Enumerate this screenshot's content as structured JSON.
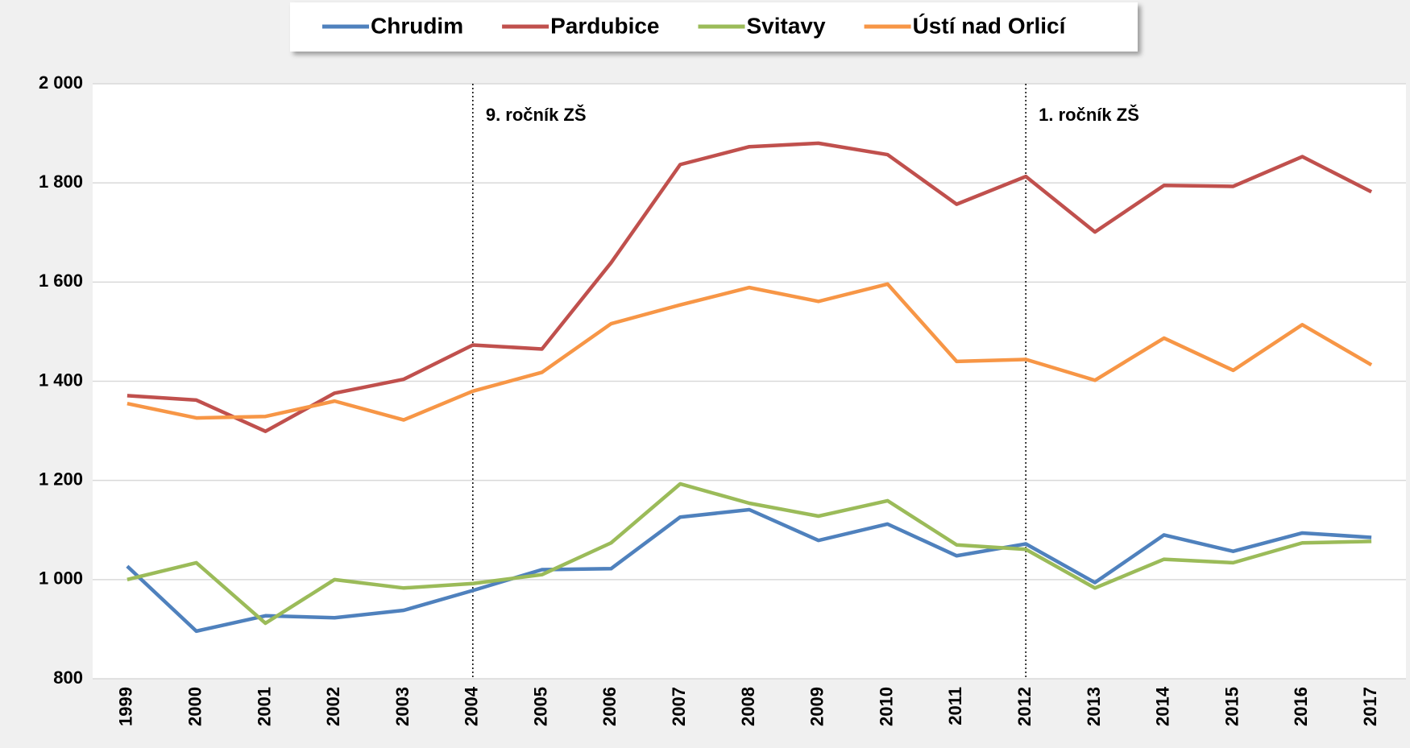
{
  "chart_data": {
    "type": "line",
    "categories": [
      "1999",
      "2000",
      "2001",
      "2002",
      "2003",
      "2004",
      "2005",
      "2006",
      "2007",
      "2008",
      "2009",
      "2010",
      "2011",
      "2012",
      "2013",
      "2014",
      "2015",
      "2016",
      "2017"
    ],
    "series": [
      {
        "name": "Chrudim",
        "color": "#4f81bd",
        "values": [
          1027,
          896,
          927,
          923,
          938,
          978,
          1020,
          1022,
          1126,
          1141,
          1079,
          1112,
          1048,
          1072,
          994,
          1090,
          1057,
          1094,
          1085
        ]
      },
      {
        "name": "Pardubice",
        "color": "#c0504d",
        "values": [
          1371,
          1362,
          1299,
          1376,
          1404,
          1473,
          1465,
          1639,
          1837,
          1873,
          1880,
          1857,
          1757,
          1813,
          1701,
          1795,
          1793,
          1853,
          1782
        ]
      },
      {
        "name": "Svitavy",
        "color": "#9bbb59",
        "values": [
          1000,
          1034,
          912,
          1000,
          983,
          992,
          1010,
          1074,
          1193,
          1154,
          1128,
          1159,
          1070,
          1061,
          983,
          1041,
          1034,
          1074,
          1077
        ]
      },
      {
        "name": "Ústí nad Orlicí",
        "color": "#f79646",
        "values": [
          1355,
          1326,
          1329,
          1360,
          1322,
          1380,
          1418,
          1516,
          1554,
          1589,
          1561,
          1596,
          1440,
          1444,
          1402,
          1487,
          1422,
          1514,
          1433
        ]
      }
    ],
    "ylim": [
      800,
      2000
    ],
    "yticks": [
      800,
      {
        "value": 1000,
        "label": "1 000"
      },
      {
        "value": 1200,
        "label": "1 200"
      },
      {
        "value": 1400,
        "label": "1 400"
      },
      {
        "value": 1600,
        "label": "1 600"
      },
      {
        "value": 1800,
        "label": "1 800"
      },
      {
        "value": 2000,
        "label": "2 000"
      }
    ],
    "grid": true,
    "legend": "top",
    "annotations": [
      {
        "text": "9. ročník ZŠ",
        "x": "2004"
      },
      {
        "text": "1. ročník ZŠ",
        "x": "2012"
      }
    ]
  }
}
